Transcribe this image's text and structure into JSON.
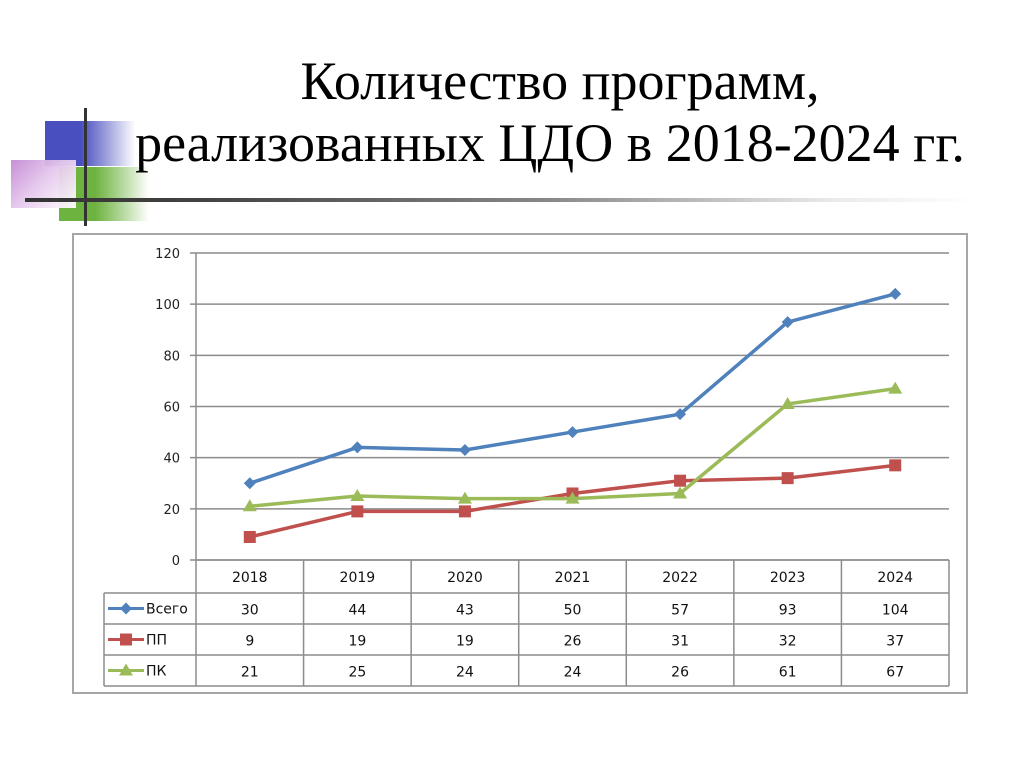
{
  "slide": {
    "title_line1": "Количество программ,",
    "title_line2": "реализованных ЦДО в 2018-2024 гг."
  },
  "colors": {
    "vsego": "#4f81bd",
    "pp": "#c0504d",
    "pk": "#9bbb59",
    "grid": "#8c8c8c",
    "frame": "#a6a6a6"
  },
  "chart_data": {
    "type": "line",
    "title": "Количество программ, реализованных ЦДО в 2018-2024 гг.",
    "xlabel": "",
    "ylabel": "",
    "categories": [
      "2018",
      "2019",
      "2020",
      "2021",
      "2022",
      "2023",
      "2024"
    ],
    "series": [
      {
        "name": "Всего",
        "marker": "diamond",
        "color": "#4f81bd",
        "values": [
          30,
          44,
          43,
          50,
          57,
          93,
          104
        ]
      },
      {
        "name": "ПП",
        "marker": "square",
        "color": "#c0504d",
        "values": [
          9,
          19,
          19,
          26,
          31,
          32,
          37
        ]
      },
      {
        "name": "ПК",
        "marker": "triangle",
        "color": "#9bbb59",
        "values": [
          21,
          25,
          24,
          24,
          26,
          61,
          67
        ]
      }
    ],
    "ylim": [
      0,
      120
    ],
    "yticks": [
      0,
      20,
      40,
      60,
      80,
      100,
      120
    ],
    "grid": true,
    "legend_position": "data-table"
  }
}
